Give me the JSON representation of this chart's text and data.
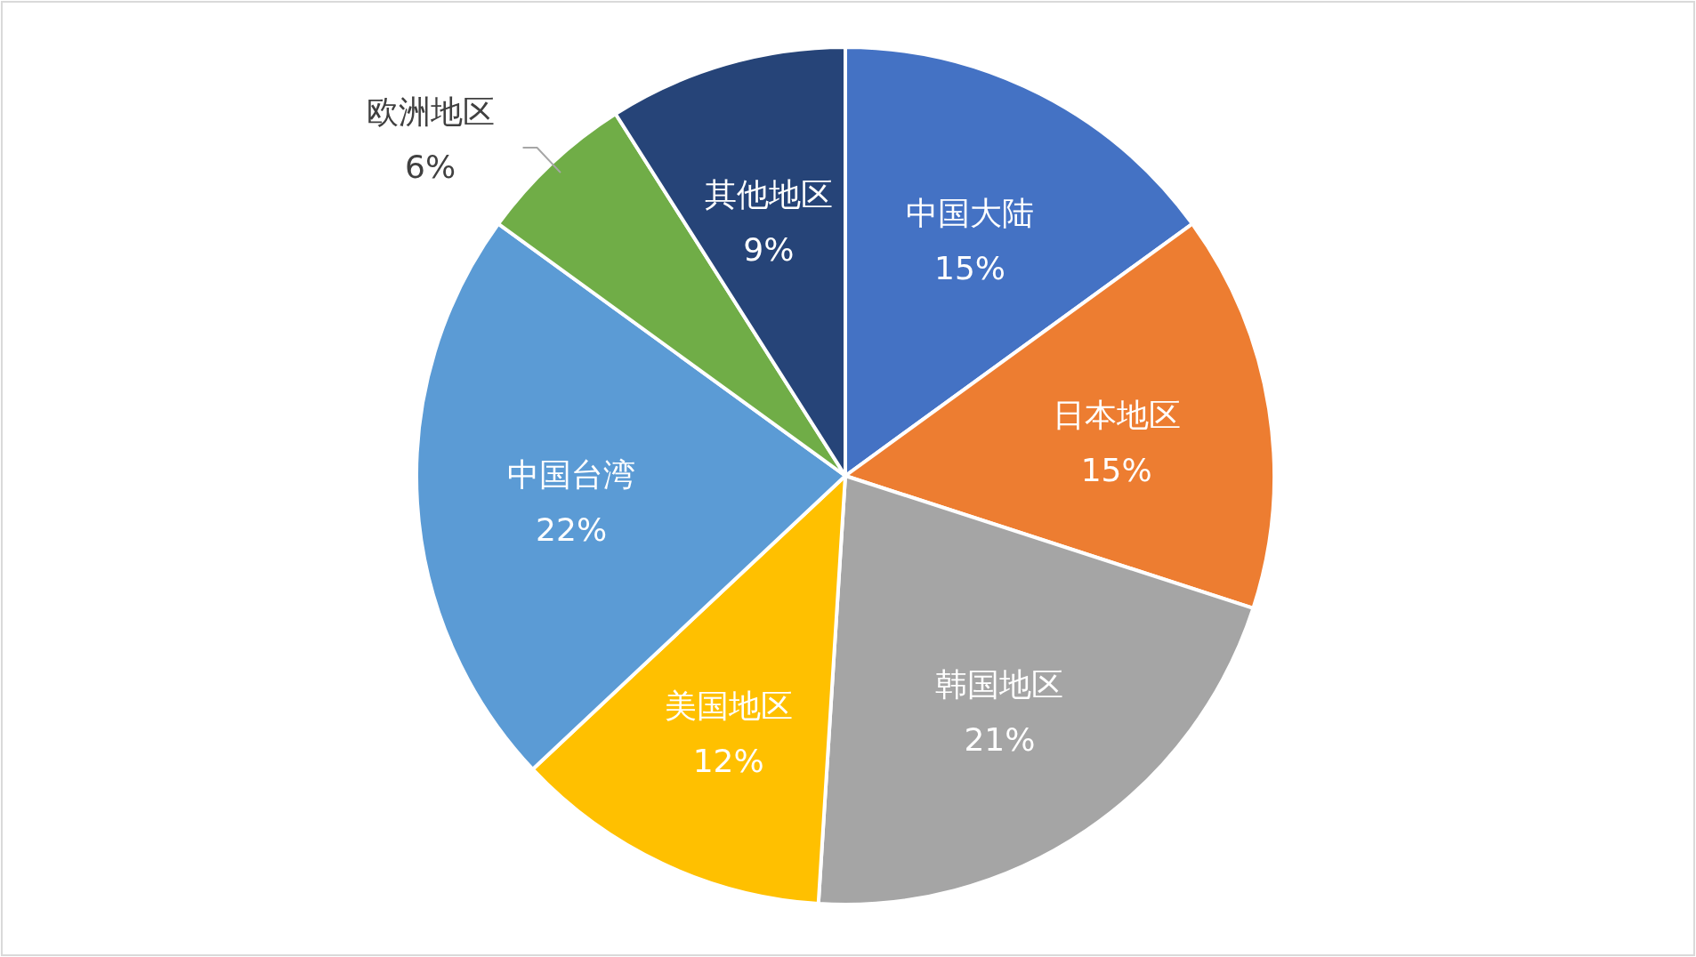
{
  "chart_data": {
    "type": "pie",
    "categories": [
      "中国大陆",
      "日本地区",
      "韩国地区",
      "美国地区",
      "中国台湾",
      "欧洲地区",
      "其他地区"
    ],
    "values": [
      15,
      15,
      21,
      12,
      22,
      6,
      9
    ],
    "value_labels": [
      "15%",
      "15%",
      "21%",
      "12%",
      "22%",
      "6%",
      "9%"
    ],
    "colors": [
      "#4472c4",
      "#ed7d31",
      "#a5a5a5",
      "#ffc000",
      "#5b9bd5",
      "#70ad47",
      "#264478"
    ]
  }
}
